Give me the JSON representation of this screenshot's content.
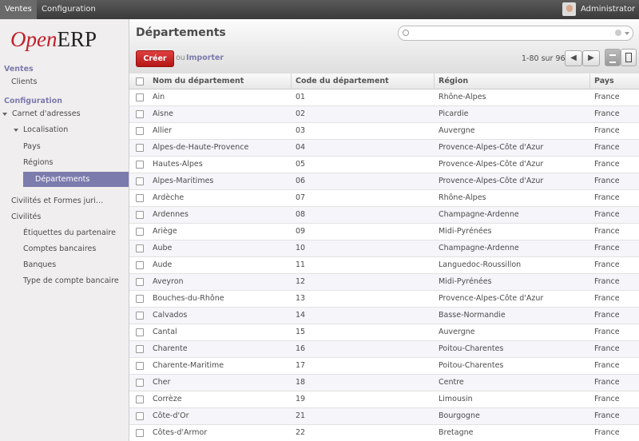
{
  "topbar": {
    "menus": [
      "Ventes",
      "Configuration"
    ],
    "user": "Administrator"
  },
  "logo": [
    "Open",
    "ERP"
  ],
  "sidebar": [
    {
      "heading": "Ventes",
      "items": [
        {
          "label": "Clients"
        }
      ]
    },
    {
      "heading": "Configuration",
      "items": [
        {
          "label": "Carnet d'adresses",
          "children": [
            {
              "label": "Localisation",
              "children": [
                {
                  "label": "Pays"
                },
                {
                  "label": "Régions"
                },
                {
                  "label": "Départements",
                  "selected": true
                }
              ]
            }
          ]
        },
        {
          "label": "Civilités et Formes juri…"
        },
        {
          "label": "Civilités"
        },
        {
          "label": "Étiquettes du partenaire"
        },
        {
          "label": "Comptes bancaires"
        },
        {
          "label": "Banques"
        },
        {
          "label": "Type de compte bancaire"
        }
      ]
    }
  ],
  "header": {
    "title": "Départements",
    "create": "Créer",
    "or": "ou",
    "import": "Importer",
    "pager": "1-80 sur 96"
  },
  "table": {
    "columns": [
      "Nom du département",
      "Code du département",
      "Région",
      "Pays"
    ],
    "rows": [
      [
        "Ain",
        "01",
        "Rhône-Alpes",
        "France"
      ],
      [
        "Aisne",
        "02",
        "Picardie",
        "France"
      ],
      [
        "Allier",
        "03",
        "Auvergne",
        "France"
      ],
      [
        "Alpes-de-Haute-Provence",
        "04",
        "Provence-Alpes-Côte d'Azur",
        "France"
      ],
      [
        "Hautes-Alpes",
        "05",
        "Provence-Alpes-Côte d'Azur",
        "France"
      ],
      [
        "Alpes-Maritimes",
        "06",
        "Provence-Alpes-Côte d'Azur",
        "France"
      ],
      [
        "Ardèche",
        "07",
        "Rhône-Alpes",
        "France"
      ],
      [
        "Ardennes",
        "08",
        "Champagne-Ardenne",
        "France"
      ],
      [
        "Ariège",
        "09",
        "Midi-Pyrénées",
        "France"
      ],
      [
        "Aube",
        "10",
        "Champagne-Ardenne",
        "France"
      ],
      [
        "Aude",
        "11",
        "Languedoc-Roussillon",
        "France"
      ],
      [
        "Aveyron",
        "12",
        "Midi-Pyrénées",
        "France"
      ],
      [
        "Bouches-du-Rhône",
        "13",
        "Provence-Alpes-Côte d'Azur",
        "France"
      ],
      [
        "Calvados",
        "14",
        "Basse-Normandie",
        "France"
      ],
      [
        "Cantal",
        "15",
        "Auvergne",
        "France"
      ],
      [
        "Charente",
        "16",
        "Poitou-Charentes",
        "France"
      ],
      [
        "Charente-Maritime",
        "17",
        "Poitou-Charentes",
        "France"
      ],
      [
        "Cher",
        "18",
        "Centre",
        "France"
      ],
      [
        "Corrèze",
        "19",
        "Limousin",
        "France"
      ],
      [
        "Côte-d'Or",
        "21",
        "Bourgogne",
        "France"
      ],
      [
        "Côtes-d'Armor",
        "22",
        "Bretagne",
        "France"
      ]
    ]
  }
}
